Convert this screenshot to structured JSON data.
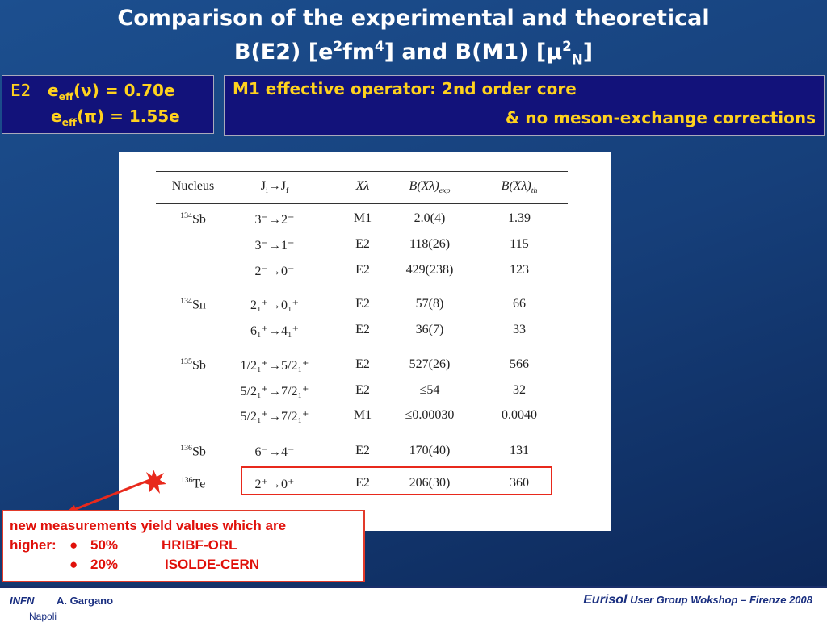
{
  "title": {
    "line1": "Comparison of the experimental and theoretical",
    "line2": {
      "a": "B(E2) [e",
      "sup1": "2",
      "b": "fm",
      "sup2": "4",
      "c": "] and B(M1) [μ",
      "sup3": "2",
      "sub": "N",
      "d": "]"
    }
  },
  "e2_box": {
    "label": "E2",
    "e1": "e",
    "eff1": "eff",
    "rest1": "(ν) = 0.70e",
    "e2": "e",
    "eff2": "eff",
    "rest2": "(π) = 1.55e"
  },
  "m1_box": {
    "line1": "M1 effective operator:  2nd order core",
    "line2": "& no meson-exchange corrections"
  },
  "table": {
    "headers": {
      "nucleus": "Nucleus",
      "j": "J",
      "i": "i",
      "arrow": "→J",
      "f": "f",
      "xl": "Xλ",
      "bexp": "B(Xλ)",
      "exp": "exp",
      "bth": "B(Xλ)",
      "th": "th"
    },
    "groups": [
      {
        "mass": "134",
        "element": "Sb",
        "rows": [
          [
            "3⁻→2⁻",
            "M1",
            "2.0(4)",
            "1.39"
          ],
          [
            "3⁻→1⁻",
            "E2",
            "118(26)",
            "115"
          ],
          [
            "2⁻→0⁻",
            "E2",
            "429(238)",
            "123"
          ]
        ]
      },
      {
        "mass": "134",
        "element": "Sn",
        "rows": [
          [
            "2₁⁺→0₁⁺",
            "E2",
            "57(8)",
            "66"
          ],
          [
            "6₁⁺→4₁⁺",
            "E2",
            "36(7)",
            "33"
          ]
        ]
      },
      {
        "mass": "135",
        "element": "Sb",
        "rows": [
          [
            "1/2₁⁺→5/2₁⁺",
            "E2",
            "527(26)",
            "566"
          ],
          [
            "5/2₁⁺→7/2₁⁺",
            "E2",
            "≤54",
            "32"
          ],
          [
            "5/2₁⁺→7/2₁⁺",
            "M1",
            "≤0.00030",
            "0.0040"
          ]
        ]
      },
      {
        "mass": "136",
        "element": "Sb",
        "rows": [
          [
            "6⁻→4⁻",
            "E2",
            "170(40)",
            "131"
          ]
        ]
      },
      {
        "mass": "136",
        "element": "Te",
        "rows": [
          [
            "2⁺→0⁺",
            "E2",
            "206(30)",
            "360"
          ]
        ]
      }
    ]
  },
  "note": {
    "intro": "new measurements yield values which are",
    "lead": "higher:",
    "items": [
      {
        "pct": "50%",
        "lab": "HRIBF-ORL"
      },
      {
        "pct": "20%",
        "lab": "ISOLDE-CERN"
      }
    ]
  },
  "footer": {
    "author": "A. Gargano",
    "eurisol": "Eurisol",
    "event": "User Group Wokshop – Firenze  2008",
    "logo": "INFN",
    "city": "Napoli"
  }
}
